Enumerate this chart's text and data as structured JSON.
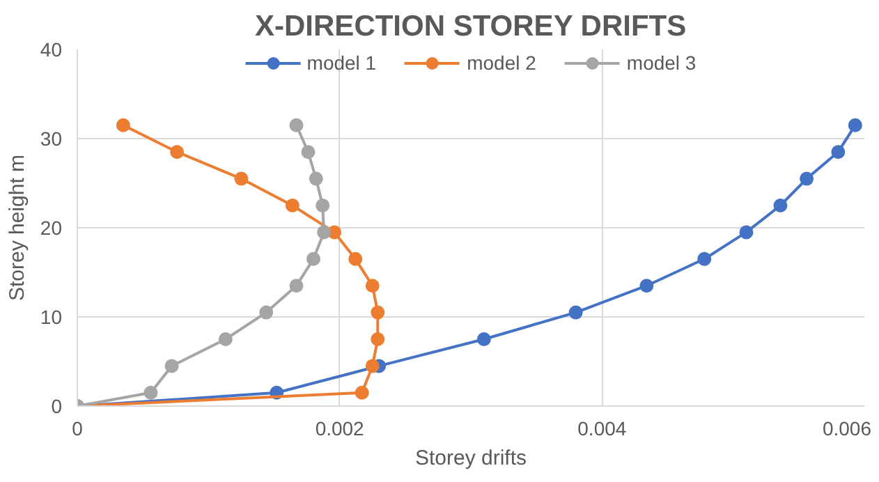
{
  "chart_data": {
    "type": "line",
    "title": "X-DIRECTION STOREY DRIFTS",
    "xlabel": "Storey drifts",
    "ylabel": "Storey height m",
    "xlim": [
      0,
      0.006
    ],
    "xticks": [
      0,
      0.002,
      0.004,
      0.006
    ],
    "ylim": [
      0,
      40
    ],
    "yticks": [
      0,
      10,
      20,
      30,
      40
    ],
    "grid": true,
    "legend": "top",
    "marker": "circle",
    "line_style": "solid",
    "series": [
      {
        "name": "model 1",
        "color": "#4472c4",
        "x": [
          0,
          0.00152,
          0.0023,
          0.0031,
          0.0038,
          0.00434,
          0.00478,
          0.0051,
          0.00536,
          0.00556,
          0.0058,
          0.00593
        ],
        "values": [
          0,
          1.5,
          4.5,
          7.5,
          10.5,
          13.5,
          16.5,
          19.5,
          22.5,
          25.5,
          28.5,
          31.5
        ]
      },
      {
        "name": "model 2",
        "color": "#ed7d31",
        "x": [
          0,
          0.00217,
          0.00225,
          0.00229,
          0.00229,
          0.00225,
          0.00212,
          0.00196,
          0.00164,
          0.00125,
          0.00076,
          0.00035
        ],
        "values": [
          0,
          1.5,
          4.5,
          7.5,
          10.5,
          13.5,
          16.5,
          19.5,
          22.5,
          25.5,
          28.5,
          31.5
        ]
      },
      {
        "name": "model 3",
        "color": "#a5a5a5",
        "x": [
          0,
          0.00056,
          0.00072,
          0.00113,
          0.00144,
          0.00167,
          0.0018,
          0.00188,
          0.00187,
          0.00182,
          0.00176,
          0.00167
        ],
        "values": [
          0,
          1.5,
          4.5,
          7.5,
          10.5,
          13.5,
          16.5,
          19.5,
          22.5,
          25.5,
          28.5,
          31.5
        ]
      }
    ]
  }
}
